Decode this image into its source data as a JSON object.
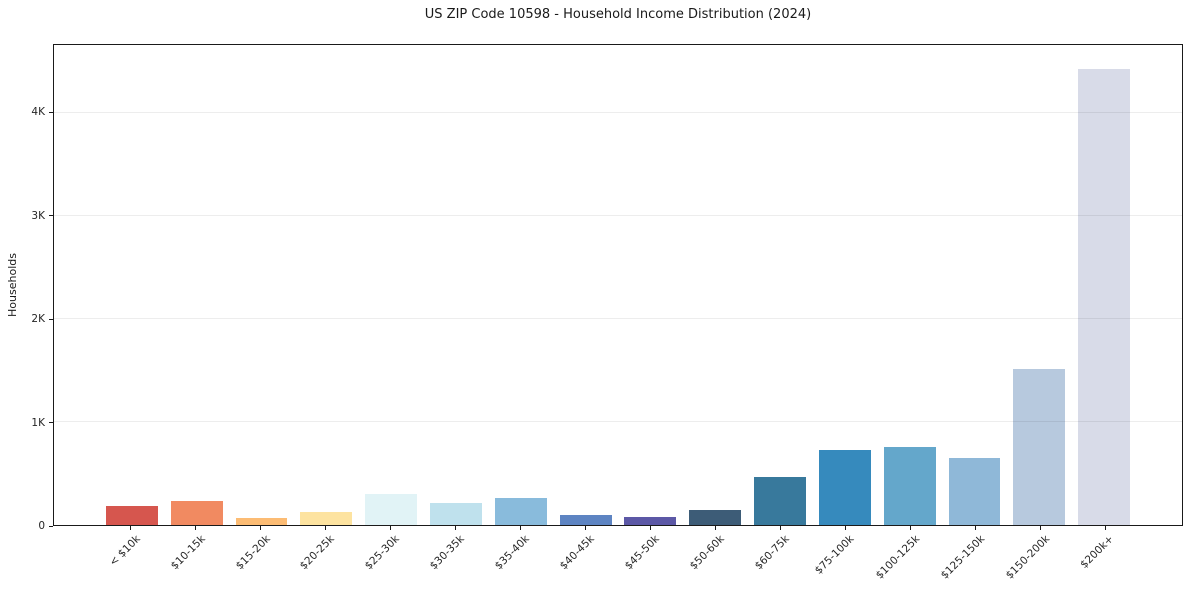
{
  "chart_data": {
    "type": "bar",
    "title": "US ZIP Code 10598 - Household Income Distribution (2024)",
    "xlabel": "",
    "ylabel": "Households",
    "categories": [
      "< $10k",
      "$10-15k",
      "$15-20k",
      "$20-25k",
      "$25-30k",
      "$30-35k",
      "$35-40k",
      "$40-45k",
      "$45-50k",
      "$50-60k",
      "$60-75k",
      "$75-100k",
      "$100-125k",
      "$125-150k",
      "$150-200k",
      "$200k+"
    ],
    "values": [
      180,
      230,
      70,
      130,
      300,
      215,
      260,
      100,
      75,
      150,
      470,
      730,
      760,
      650,
      1510,
      4430
    ],
    "bar_colors": [
      "#d6564e",
      "#f18a61",
      "#fcbc74",
      "#fde3a0",
      "#e1f3f6",
      "#bfe1ed",
      "#89bbdc",
      "#5d84c2",
      "#5c58a6",
      "#3d5c77",
      "#38799c",
      "#368abd",
      "#64a7cb",
      "#8fb8d8",
      "#b7c9de",
      "#d8dbe8"
    ],
    "ylim": [
      0,
      4660
    ],
    "yticks": [
      {
        "value": 0,
        "label": "0"
      },
      {
        "value": 1000,
        "label": "1K"
      },
      {
        "value": 2000,
        "label": "2K"
      },
      {
        "value": 3000,
        "label": "3K"
      },
      {
        "value": 4000,
        "label": "4K"
      }
    ],
    "grid": "horizontal",
    "legend": "none"
  },
  "colors": {
    "background": "#ffffff",
    "spine": "#1a1a1a",
    "gridline": "#ededed",
    "text": "#1a1a1a"
  }
}
